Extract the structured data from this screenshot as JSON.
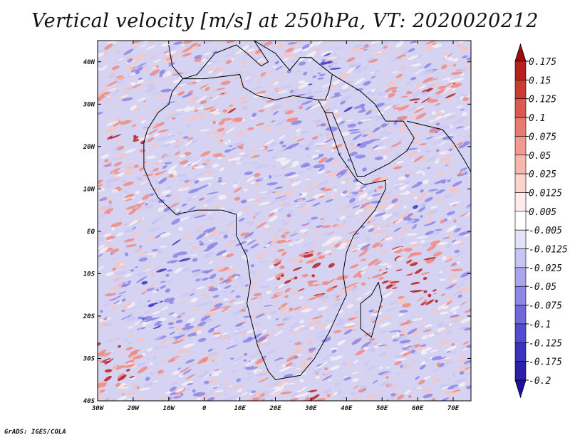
{
  "title": "Vertical velocity [m/s] at 250hPa, VT: 2020020212",
  "footer": "GrADS: IGES/COLA",
  "map": {
    "lon_range": [
      -30,
      75
    ],
    "lat_range": [
      -40,
      45
    ],
    "lon_ticks": [
      {
        "value": -30,
        "label": "30W"
      },
      {
        "value": -20,
        "label": "20W"
      },
      {
        "value": -10,
        "label": "10W"
      },
      {
        "value": 0,
        "label": "0"
      },
      {
        "value": 10,
        "label": "10E"
      },
      {
        "value": 20,
        "label": "20E"
      },
      {
        "value": 30,
        "label": "30E"
      },
      {
        "value": 40,
        "label": "40E"
      },
      {
        "value": 50,
        "label": "50E"
      },
      {
        "value": 60,
        "label": "60E"
      },
      {
        "value": 70,
        "label": "70E"
      }
    ],
    "lat_ticks": [
      {
        "value": 40,
        "label": "40N"
      },
      {
        "value": 30,
        "label": "30N"
      },
      {
        "value": 20,
        "label": "20N"
      },
      {
        "value": 10,
        "label": "10N"
      },
      {
        "value": 0,
        "label": "EQ"
      },
      {
        "value": -10,
        "label": "10S"
      },
      {
        "value": -20,
        "label": "20S"
      },
      {
        "value": -30,
        "label": "30S"
      },
      {
        "value": -40,
        "label": "40S"
      }
    ],
    "field_colors": {
      "strong_up": "#b22222",
      "up": "#f08a80",
      "weak_up": "#f6c6c0",
      "neutral": "#f4f0f6",
      "weak_down": "#c8c8f2",
      "down": "#8a86e8",
      "strong_down": "#3a34c0",
      "coastline": "#000000"
    }
  },
  "colorbar": {
    "labels": [
      "0.175",
      "0.15",
      "0.125",
      "0.1",
      "0.075",
      "0.05",
      "0.025",
      "0.0125",
      "0.005",
      "-0.005",
      "-0.0125",
      "-0.025",
      "-0.05",
      "-0.075",
      "-0.1",
      "-0.125",
      "-0.175",
      "-0.2"
    ],
    "colors": [
      "#9e0d0d",
      "#b82020",
      "#cc3b33",
      "#dc5a50",
      "#e87a70",
      "#f19a90",
      "#f7b7ae",
      "#fbd4ce",
      "#fdeceb",
      "#ffffff",
      "#e4e2fa",
      "#c8c5f4",
      "#aaa6ee",
      "#8d88e6",
      "#6f69dc",
      "#524cd0",
      "#3a33bf",
      "#2a20aa",
      "#1e10a0"
    ]
  }
}
